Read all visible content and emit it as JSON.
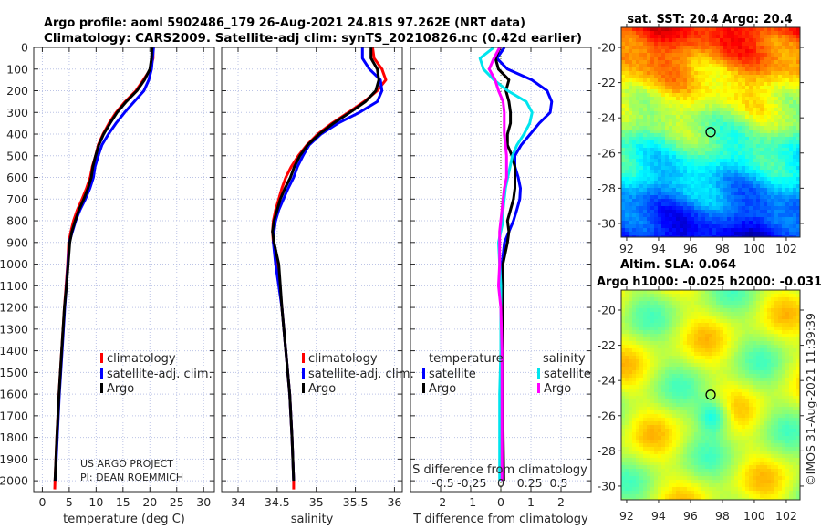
{
  "title": {
    "line1": "Argo profile: aoml 5902486_179 26-Aug-2021 24.81S 97.262E (NRT data)",
    "line2": "Climatology: CARS2009. Satellite-adj clim: synTS_20210826.nc (0.42d earlier)"
  },
  "credit": "©IMOS 31-Aug-2021 11:39:39",
  "chart_data": [
    {
      "type": "line",
      "panel": "temperature",
      "xlabel": "temperature (deg C)",
      "xlim": [
        -1.6,
        32
      ],
      "ylim": [
        0,
        2050
      ],
      "y_reversed": true,
      "grid": true,
      "xticks": [
        0,
        5,
        10,
        15,
        20,
        25,
        30
      ],
      "xtick_labels": [
        "0",
        "5",
        "10",
        "15",
        "20",
        "25",
        "30"
      ],
      "yticks": [
        0,
        100,
        200,
        300,
        400,
        500,
        600,
        700,
        800,
        900,
        1000,
        1100,
        1200,
        1300,
        1400,
        1500,
        1600,
        1700,
        1800,
        1900,
        2000
      ],
      "ytick_labels": [
        "0",
        "100",
        "200",
        "300",
        "400",
        "500",
        "600",
        "700",
        "800",
        "900",
        "1000",
        "1100",
        "1200",
        "1300",
        "1400",
        "1500",
        "1600",
        "1700",
        "1800",
        "1900",
        "2000"
      ],
      "depth": [
        0,
        50,
        100,
        150,
        200,
        250,
        300,
        350,
        400,
        450,
        500,
        550,
        600,
        650,
        700,
        750,
        800,
        850,
        900,
        1000,
        1100,
        1200,
        1400,
        1600,
        1800,
        2000,
        2040
      ],
      "series": [
        {
          "name": "climatology",
          "color": "#ff0000",
          "values": [
            20.6,
            20.6,
            20.1,
            18.8,
            17.4,
            15.4,
            13.7,
            12.4,
            11.3,
            10.4,
            9.9,
            9.3,
            8.9,
            8.2,
            7.4,
            6.5,
            5.8,
            5.3,
            4.9,
            4.7,
            4.4,
            4.1,
            3.6,
            3.1,
            2.7,
            2.35,
            2.3
          ]
        },
        {
          "name": "satellite-adj. clim.",
          "color": "#0000ff",
          "values": [
            20.7,
            20.5,
            20.3,
            19.8,
            18.9,
            17.1,
            15.3,
            13.7,
            12.3,
            11.1,
            10.4,
            9.8,
            9.5,
            8.85,
            8.0,
            7.0,
            6.2,
            5.6,
            5.0,
            4.75,
            4.47,
            4.17,
            3.67,
            3.17,
            2.77,
            2.4,
            null
          ]
        },
        {
          "name": "Argo",
          "color": "#000000",
          "values": [
            20.4,
            20.3,
            20.0,
            19.0,
            17.6,
            15.6,
            13.9,
            12.6,
            11.4,
            10.5,
            9.9,
            9.4,
            9.1,
            8.5,
            7.7,
            6.8,
            6.1,
            5.5,
            5.1,
            4.8,
            4.5,
            4.1,
            3.6,
            3.1,
            2.7,
            2.35,
            null
          ]
        }
      ],
      "legend": "center-right",
      "annotation": [
        "US ARGO PROJECT",
        "PI: DEAN ROEMMICH"
      ]
    },
    {
      "type": "line",
      "panel": "salinity",
      "xlabel": "salinity",
      "xlim": [
        33.79,
        36.1
      ],
      "ylim": [
        0,
        2050
      ],
      "y_reversed": true,
      "grid": true,
      "xticks": [
        34,
        34.5,
        35,
        35.5,
        36
      ],
      "xtick_labels": [
        "34",
        "34.5",
        "35",
        "35.5",
        "36"
      ],
      "depth": [
        0,
        50,
        100,
        150,
        200,
        250,
        300,
        350,
        400,
        450,
        500,
        550,
        600,
        650,
        700,
        750,
        800,
        850,
        900,
        1000,
        1100,
        1200,
        1400,
        1600,
        1800,
        2000,
        2040
      ],
      "series": [
        {
          "name": "climatology",
          "color": "#ff0000",
          "values": [
            35.72,
            35.74,
            35.84,
            35.89,
            35.78,
            35.61,
            35.41,
            35.2,
            35.02,
            34.88,
            34.77,
            34.68,
            34.61,
            34.56,
            34.52,
            34.48,
            34.45,
            34.44,
            34.45,
            34.5,
            34.53,
            34.56,
            34.61,
            34.66,
            34.69,
            34.71,
            34.71
          ]
        },
        {
          "name": "satellite-adj. clim.",
          "color": "#0000ff",
          "values": [
            35.59,
            35.59,
            35.68,
            35.82,
            35.84,
            35.78,
            35.55,
            35.28,
            35.06,
            34.91,
            34.83,
            34.76,
            34.71,
            34.64,
            34.58,
            34.52,
            34.48,
            34.46,
            34.45,
            34.48,
            34.52,
            34.56,
            34.61,
            34.66,
            34.69,
            34.71,
            null
          ]
        },
        {
          "name": "Argo",
          "color": "#000000",
          "values": [
            35.7,
            35.7,
            35.78,
            35.8,
            35.76,
            35.63,
            35.43,
            35.22,
            35.04,
            34.89,
            34.79,
            34.72,
            34.67,
            34.6,
            34.54,
            34.5,
            34.46,
            34.44,
            34.46,
            34.52,
            34.54,
            34.56,
            34.61,
            34.66,
            34.69,
            34.71,
            null
          ]
        }
      ],
      "legend": "center-right"
    },
    {
      "type": "line",
      "panel": "difference",
      "xlabel": "T difference from climatology",
      "x2label": "S difference from climatology",
      "xlim": [
        -3,
        3
      ],
      "x2lim": [
        -0.78,
        0.78
      ],
      "ylim": [
        0,
        2050
      ],
      "y_reversed": true,
      "grid": true,
      "xticks": [
        -2,
        -1,
        0,
        1,
        2
      ],
      "xtick_labels": [
        "-2",
        "-1",
        "0",
        "1",
        "2"
      ],
      "x2ticks": [
        -0.5,
        -0.25,
        0,
        0.25,
        0.5
      ],
      "x2tick_labels": [
        "-0.5",
        "-0.25",
        "0",
        "0.25",
        "0.5"
      ],
      "depth": [
        0,
        50,
        100,
        150,
        200,
        250,
        300,
        350,
        400,
        450,
        500,
        550,
        600,
        650,
        700,
        750,
        800,
        850,
        900,
        1000,
        1100,
        1200,
        1400,
        1600,
        1800,
        2000,
        2040
      ],
      "legend_groups": [
        {
          "title": "temperature",
          "items": [
            "satellite",
            "Argo"
          ]
        },
        {
          "title": "salinity",
          "items": [
            "satellite",
            "Argo"
          ]
        }
      ],
      "series": [
        {
          "name": "satellite",
          "group": "temperature",
          "axis": "T",
          "color": "#0000ff",
          "values": [
            0.12,
            -0.13,
            0.22,
            1.03,
            1.54,
            1.69,
            1.64,
            1.28,
            0.98,
            0.68,
            0.47,
            0.47,
            0.58,
            0.65,
            0.63,
            0.53,
            0.42,
            0.27,
            0.12,
            0.04,
            0.07,
            0.06,
            0.05,
            0.05,
            0.05,
            0.05,
            null
          ]
        },
        {
          "name": "Argo",
          "group": "temperature",
          "axis": "T",
          "color": "#000000",
          "values": [
            -0.03,
            -0.18,
            -0.08,
            0.27,
            0.17,
            0.27,
            0.32,
            0.32,
            0.22,
            0.22,
            0.37,
            0.47,
            0.47,
            0.47,
            0.42,
            0.32,
            0.22,
            0.27,
            0.22,
            0.07,
            0.08,
            0.06,
            0.05,
            0.06,
            0.08,
            0.1,
            null
          ]
        },
        {
          "name": "satellite",
          "group": "salinity",
          "axis": "S",
          "color": "#00e5ee",
          "values": [
            -0.06,
            -0.18,
            -0.15,
            -0.06,
            0.06,
            0.22,
            0.27,
            0.25,
            0.2,
            0.14,
            0.1,
            0.08,
            0.06,
            0.04,
            0.03,
            0.02,
            0.02,
            0.0,
            -0.02,
            -0.01,
            0,
            0,
            0,
            -0.01,
            -0.01,
            -0.01,
            null
          ]
        },
        {
          "name": "Argo",
          "group": "salinity",
          "axis": "S",
          "color": "#ff00ff",
          "values": [
            -0.01,
            -0.06,
            -0.1,
            -0.05,
            -0.02,
            0.02,
            0.03,
            0.03,
            0.03,
            0.04,
            0.05,
            0.05,
            0.05,
            0.03,
            0.02,
            0.01,
            0.0,
            -0.01,
            -0.01,
            -0.01,
            -0.02,
            0,
            0.01,
            0.01,
            0.01,
            0.01,
            null
          ]
        }
      ]
    },
    {
      "type": "heatmap",
      "panel": "sst-map",
      "title": "sat. SST: 20.4 Argo: 20.4",
      "xlim": [
        91.66,
        102.86
      ],
      "ylim": [
        -30.78,
        -18.86
      ],
      "xticks": [
        92,
        94,
        96,
        98,
        100,
        102
      ],
      "xtick_labels": [
        "92",
        "94",
        "96",
        "98",
        "100",
        "102"
      ],
      "yticks": [
        -20,
        -22,
        -24,
        -26,
        -28,
        -30
      ],
      "ytick_labels": [
        "-20",
        "-22",
        "-24",
        "-26",
        "-28",
        "-30"
      ],
      "colormap": "jet",
      "marker": {
        "lon": 97.262,
        "lat": -24.81
      }
    },
    {
      "type": "heatmap",
      "panel": "sla-map",
      "title": "Altim. SLA: 0.064",
      "subtitle": "Argo h1000: -0.025 h2000: -0.031",
      "xlim": [
        91.66,
        102.86
      ],
      "ylim": [
        -30.78,
        -18.86
      ],
      "xticks": [
        92,
        94,
        96,
        98,
        100,
        102
      ],
      "xtick_labels": [
        "92",
        "94",
        "96",
        "98",
        "100",
        "102"
      ],
      "yticks": [
        -20,
        -22,
        -24,
        -26,
        -28,
        -30
      ],
      "ytick_labels": [
        "-20",
        "-22",
        "-24",
        "-26",
        "-28",
        "-30"
      ],
      "colormap": "jet",
      "marker": {
        "lon": 97.262,
        "lat": -24.81
      }
    }
  ]
}
